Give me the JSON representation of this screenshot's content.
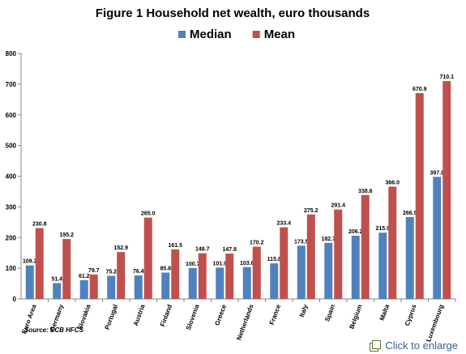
{
  "chart_data": {
    "type": "bar",
    "title": "Figure 1 Household net wealth, euro thousands",
    "categories": [
      "Euro Area",
      "Germany",
      "Slovakia",
      "Portugal",
      "Austria",
      "Finland",
      "Slovenia",
      "Greece",
      "Netherlands",
      "France",
      "Italy",
      "Spain",
      "Belgium",
      "Malta",
      "Cyprus",
      "Luxembourg"
    ],
    "series": [
      {
        "name": "Median",
        "color": "#4f81bd",
        "values": [
          109.2,
          51.4,
          61.2,
          75.2,
          76.4,
          85.8,
          100.7,
          101.9,
          103.6,
          115.8,
          173.5,
          182.7,
          206.2,
          215.9,
          266.9,
          397.8
        ],
        "labels": [
          "109.2",
          "51.4",
          "61.2",
          "75.2",
          "76.4",
          "85.8",
          "100.7",
          "101.9",
          "103.6",
          "115.8",
          "173.5",
          "182.7",
          "206.2",
          "215.9",
          "266.9",
          "397.8"
        ]
      },
      {
        "name": "Mean",
        "color": "#c0504d",
        "values": [
          230.8,
          195.2,
          79.7,
          152.9,
          265.0,
          161.5,
          148.7,
          147.8,
          170.2,
          233.4,
          275.2,
          291.4,
          338.6,
          366.0,
          670.9,
          710.1
        ],
        "labels": [
          "230.8",
          "195.2",
          "79.7",
          "152.9",
          "265.0",
          "161.5",
          "148.7",
          "147.8",
          "170.2",
          "233.4",
          "275.2",
          "291.4",
          "338.6",
          "366.0",
          "670.9",
          "710.1"
        ]
      }
    ],
    "ylim": [
      0,
      800
    ],
    "yticks": [
      "0",
      "100",
      "200",
      "300",
      "400",
      "500",
      "600",
      "700",
      "800"
    ],
    "grid": false,
    "legend": "top-center",
    "source": "Source: ECB HFCS"
  },
  "link": {
    "label": "Click to enlarge",
    "icon": "enlarge-icon"
  }
}
